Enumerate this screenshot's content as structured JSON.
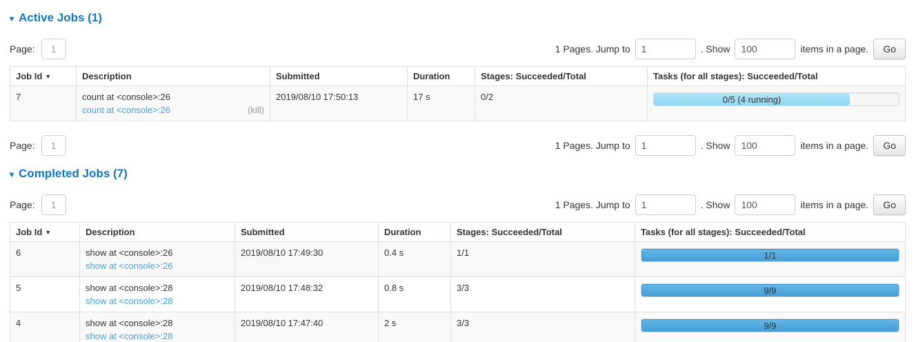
{
  "icons": {
    "collapse_arrow": "▾",
    "sort_desc": "▼"
  },
  "pagination": {
    "page_label": "Page:",
    "page_value": "1",
    "pages_text": "1 Pages. Jump to",
    "jump_value": "1",
    "after_jump_text": ". Show",
    "show_value": "100",
    "items_text": "items in a page.",
    "go_label": "Go"
  },
  "active_jobs": {
    "title": "Active Jobs (1)",
    "table": {
      "headers": {
        "job_id": "Job Id",
        "description": "Description",
        "submitted": "Submitted",
        "duration": "Duration",
        "stages": "Stages: Succeeded/Total",
        "tasks": "Tasks (for all stages): Succeeded/Total"
      },
      "rows": [
        {
          "job_id": "7",
          "description": "count at <console>:26",
          "description_link": "count at <console>:26",
          "kill_label": "(kill)",
          "submitted": "2019/08/10 17:50:13",
          "duration": "17 s",
          "stages": "0/2",
          "tasks_label": "0/5 (4 running)",
          "progress_percent": 80
        }
      ]
    }
  },
  "completed_jobs": {
    "title": "Completed Jobs (7)",
    "table": {
      "headers": {
        "job_id": "Job Id",
        "description": "Description",
        "submitted": "Submitted",
        "duration": "Duration",
        "stages": "Stages: Succeeded/Total",
        "tasks": "Tasks (for all stages): Succeeded/Total"
      },
      "rows": [
        {
          "job_id": "6",
          "description": "show at <console>:26",
          "description_link": "show at <console>:26",
          "submitted": "2019/08/10 17:49:30",
          "duration": "0.4 s",
          "stages": "1/1",
          "tasks_label": "1/1",
          "progress_percent": 100
        },
        {
          "job_id": "5",
          "description": "show at <console>:28",
          "description_link": "show at <console>:28",
          "submitted": "2019/08/10 17:48:32",
          "duration": "0.8 s",
          "stages": "3/3",
          "tasks_label": "9/9",
          "progress_percent": 100
        },
        {
          "job_id": "4",
          "description": "show at <console>:28",
          "description_link": "show at <console>:28",
          "submitted": "2019/08/10 17:47:40",
          "duration": "2 s",
          "stages": "3/3",
          "tasks_label": "9/9",
          "progress_percent": 100
        }
      ]
    }
  },
  "colors": {
    "title_blue": "#1476bd",
    "link_blue": "#42a1dc",
    "bar_running": "#8dd7f1",
    "bar_succeeded": "#459ed6",
    "row_stripe": "#f9f9f9"
  }
}
